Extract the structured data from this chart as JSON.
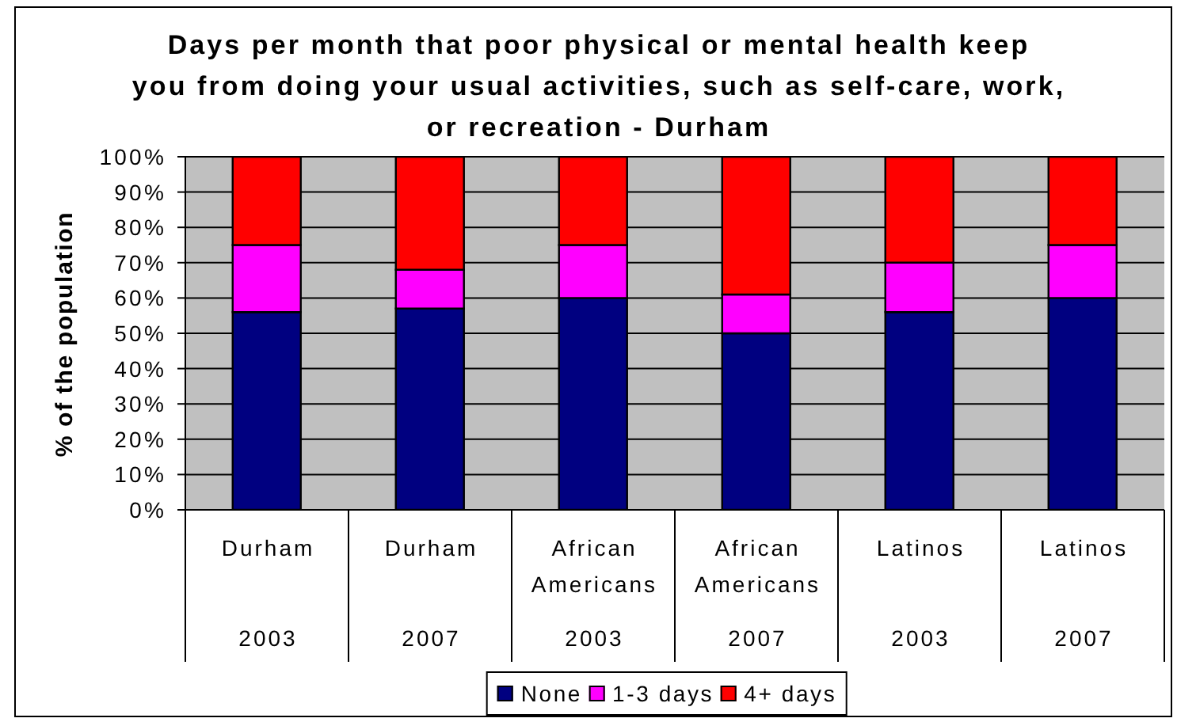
{
  "chart_data": {
    "type": "bar",
    "title": "Days per month that poor physical or mental health keep\nyou from doing your usual activities, such as self-care, work,\nor recreation - Durham",
    "ylabel": "% of the population",
    "categories": [
      "Durham\n2003",
      "Durham\n2007",
      "African Americans\n2003",
      "African Americans\n2007",
      "Latinos\n2003",
      "Latinos\n2007"
    ],
    "series": [
      {
        "name": "None",
        "color": "#000080",
        "values": [
          56,
          57,
          60,
          50,
          56,
          60
        ]
      },
      {
        "name": "1-3 days",
        "color": "#ff00ff",
        "values": [
          19,
          11,
          15,
          11,
          14,
          15
        ]
      },
      {
        "name": "4+ days",
        "color": "#ff0000",
        "values": [
          25,
          32,
          25,
          39,
          30,
          25
        ]
      }
    ],
    "stacked": true,
    "ylim": [
      0,
      100
    ],
    "yticks": [
      {
        "value": 0,
        "label": "0%"
      },
      {
        "value": 10,
        "label": "10%"
      },
      {
        "value": 20,
        "label": "20%"
      },
      {
        "value": 30,
        "label": "30%"
      },
      {
        "value": 40,
        "label": "40%"
      },
      {
        "value": 50,
        "label": "50%"
      },
      {
        "value": 60,
        "label": "60%"
      },
      {
        "value": 70,
        "label": "70%"
      },
      {
        "value": 80,
        "label": "80%"
      },
      {
        "value": 90,
        "label": "90%"
      },
      {
        "value": 100,
        "label": "100%"
      }
    ],
    "grid": "y",
    "legend": "bottom"
  }
}
